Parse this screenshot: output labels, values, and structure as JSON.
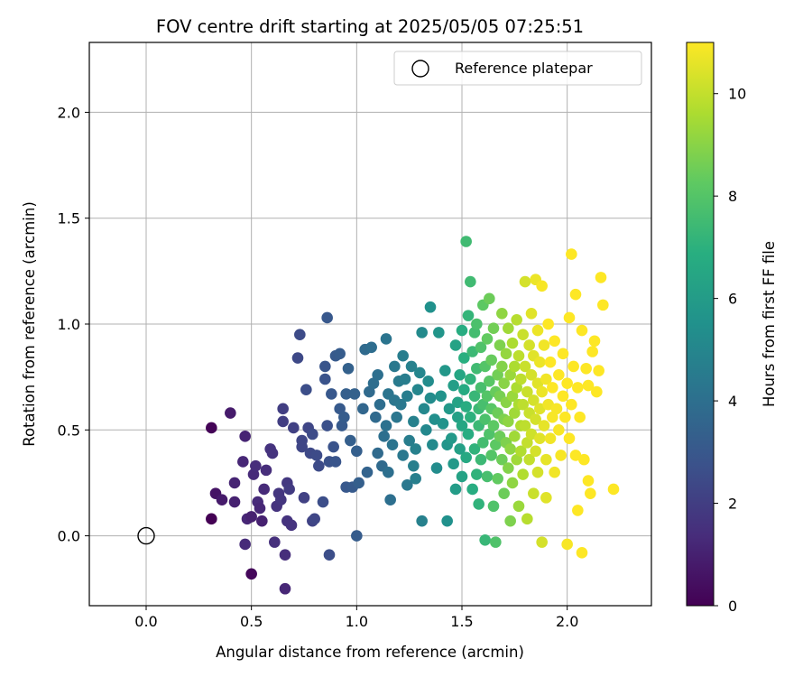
{
  "chart_data": {
    "type": "scatter",
    "title": "FOV centre drift starting at 2025/05/05 07:25:51",
    "xlabel": "Angular distance from reference (arcmin)",
    "ylabel": "Rotation from reference (arcmin)",
    "xlim": [
      -0.27,
      2.4
    ],
    "ylim": [
      -0.33,
      2.33
    ],
    "x_ticks": [
      "0.0",
      "0.5",
      "1.0",
      "1.5",
      "2.0"
    ],
    "y_ticks": [
      "0.0",
      "0.5",
      "1.0",
      "1.5",
      "2.0"
    ],
    "grid": true,
    "legend": {
      "placement": "top-right",
      "entries": [
        "Reference platepar"
      ]
    },
    "reference_point": {
      "x": 0.0,
      "y": 0.0
    },
    "colorbar": {
      "label": "Hours from first FF file",
      "colormap": "viridis",
      "range": [
        0,
        11
      ],
      "ticks": [
        "0",
        "2",
        "4",
        "6",
        "8",
        "10"
      ]
    },
    "points": [
      [
        0.31,
        0.51,
        0.1
      ],
      [
        0.31,
        0.08,
        0.0
      ],
      [
        0.33,
        0.2,
        0.6
      ],
      [
        0.36,
        0.17,
        0.8
      ],
      [
        0.4,
        0.58,
        0.8
      ],
      [
        0.42,
        0.16,
        1.0
      ],
      [
        0.42,
        0.25,
        1.1
      ],
      [
        0.46,
        0.35,
        1.2
      ],
      [
        0.47,
        0.47,
        1.1
      ],
      [
        0.47,
        -0.04,
        1.3
      ],
      [
        0.48,
        0.08,
        1.2
      ],
      [
        0.5,
        0.09,
        1.0
      ],
      [
        0.5,
        -0.18,
        0.2
      ],
      [
        0.51,
        0.29,
        1.3
      ],
      [
        0.52,
        0.33,
        1.4
      ],
      [
        0.53,
        0.16,
        1.3
      ],
      [
        0.54,
        0.13,
        1.2
      ],
      [
        0.55,
        0.07,
        1.0
      ],
      [
        0.56,
        0.22,
        1.3
      ],
      [
        0.57,
        0.31,
        1.4
      ],
      [
        0.59,
        0.41,
        1.6
      ],
      [
        0.6,
        0.39,
        1.6
      ],
      [
        0.61,
        -0.03,
        1.5
      ],
      [
        0.62,
        0.14,
        1.6
      ],
      [
        0.63,
        0.2,
        1.7
      ],
      [
        0.64,
        0.17,
        1.7
      ],
      [
        0.65,
        0.6,
        2.0
      ],
      [
        0.65,
        0.54,
        2.0
      ],
      [
        0.66,
        -0.09,
        1.4
      ],
      [
        0.66,
        -0.25,
        1.2
      ],
      [
        0.67,
        0.07,
        1.6
      ],
      [
        0.67,
        0.25,
        1.8
      ],
      [
        0.68,
        0.22,
        1.9
      ],
      [
        0.69,
        0.05,
        1.6
      ],
      [
        0.7,
        0.51,
        2.1
      ],
      [
        0.72,
        0.84,
        2.4
      ],
      [
        0.73,
        0.95,
        2.5
      ],
      [
        0.74,
        0.45,
        2.3
      ],
      [
        0.74,
        0.42,
        2.3
      ],
      [
        0.75,
        0.18,
        2.1
      ],
      [
        0.76,
        0.69,
        2.6
      ],
      [
        0.77,
        0.51,
        2.3
      ],
      [
        0.78,
        0.39,
        2.4
      ],
      [
        0.79,
        0.48,
        2.5
      ],
      [
        0.79,
        0.07,
        2.2
      ],
      [
        0.8,
        0.08,
        2.3
      ],
      [
        0.81,
        0.38,
        2.5
      ],
      [
        0.82,
        0.33,
        2.5
      ],
      [
        0.84,
        0.16,
        2.6
      ],
      [
        0.85,
        0.8,
        2.9
      ],
      [
        0.85,
        0.74,
        2.8
      ],
      [
        0.86,
        0.52,
        2.7
      ],
      [
        0.86,
        1.03,
        3.0
      ],
      [
        0.87,
        0.35,
        2.7
      ],
      [
        0.87,
        -0.09,
        2.6
      ],
      [
        0.88,
        0.67,
        3.0
      ],
      [
        0.89,
        0.42,
        2.8
      ],
      [
        0.9,
        0.85,
        3.1
      ],
      [
        0.9,
        0.35,
        2.9
      ],
      [
        0.92,
        0.86,
        3.2
      ],
      [
        0.92,
        0.6,
        3.1
      ],
      [
        0.93,
        0.52,
        3.1
      ],
      [
        0.94,
        0.56,
        3.2
      ],
      [
        0.95,
        0.23,
        3.0
      ],
      [
        0.95,
        0.67,
        3.3
      ],
      [
        0.96,
        0.79,
        3.4
      ],
      [
        0.97,
        0.45,
        3.3
      ],
      [
        0.98,
        0.23,
        3.1
      ],
      [
        0.99,
        0.67,
        3.4
      ],
      [
        1.0,
        0.4,
        3.3
      ],
      [
        1.0,
        0.0,
        3.2
      ],
      [
        1.01,
        0.25,
        3.3
      ],
      [
        1.03,
        0.6,
        3.6
      ],
      [
        1.04,
        0.88,
        3.8
      ],
      [
        1.05,
        0.3,
        3.5
      ],
      [
        1.06,
        0.68,
        3.8
      ],
      [
        1.07,
        0.89,
        3.9
      ],
      [
        1.08,
        0.72,
        3.9
      ],
      [
        1.09,
        0.56,
        3.8
      ],
      [
        1.1,
        0.39,
        3.8
      ],
      [
        1.1,
        0.76,
        4.0
      ],
      [
        1.11,
        0.62,
        3.9
      ],
      [
        1.12,
        0.33,
        3.8
      ],
      [
        1.13,
        0.47,
        4.0
      ],
      [
        1.14,
        0.93,
        4.2
      ],
      [
        1.14,
        0.52,
        4.1
      ],
      [
        1.15,
        0.3,
        4.0
      ],
      [
        1.15,
        0.67,
        4.2
      ],
      [
        1.16,
        0.17,
        4.0
      ],
      [
        1.17,
        0.43,
        4.2
      ],
      [
        1.18,
        0.8,
        4.4
      ],
      [
        1.18,
        0.64,
        4.3
      ],
      [
        1.19,
        0.56,
        4.3
      ],
      [
        1.2,
        0.73,
        4.5
      ],
      [
        1.21,
        0.62,
        4.4
      ],
      [
        1.22,
        0.38,
        4.4
      ],
      [
        1.22,
        0.85,
        4.6
      ],
      [
        1.23,
        0.74,
        4.6
      ],
      [
        1.24,
        0.66,
        4.6
      ],
      [
        1.24,
        0.24,
        4.4
      ],
      [
        1.25,
        0.45,
        4.6
      ],
      [
        1.26,
        0.8,
        4.8
      ],
      [
        1.27,
        0.33,
        4.7
      ],
      [
        1.27,
        0.54,
        4.8
      ],
      [
        1.28,
        0.41,
        4.8
      ],
      [
        1.28,
        0.27,
        4.7
      ],
      [
        1.29,
        0.69,
        5.0
      ],
      [
        1.3,
        0.77,
        5.0
      ],
      [
        1.31,
        0.96,
        5.2
      ],
      [
        1.31,
        0.07,
        4.8
      ],
      [
        1.32,
        0.6,
        5.1
      ],
      [
        1.33,
        0.5,
        5.1
      ],
      [
        1.34,
        0.73,
        5.3
      ],
      [
        1.35,
        0.65,
        5.3
      ],
      [
        1.35,
        1.08,
        5.5
      ],
      [
        1.36,
        0.43,
        5.2
      ],
      [
        1.37,
        0.55,
        5.4
      ],
      [
        1.38,
        0.32,
        5.3
      ],
      [
        1.39,
        0.96,
        5.7
      ],
      [
        1.4,
        0.66,
        5.6
      ],
      [
        1.41,
        0.53,
        5.6
      ],
      [
        1.42,
        0.78,
        5.8
      ],
      [
        1.43,
        0.43,
        5.7
      ],
      [
        1.43,
        0.07,
        5.5
      ],
      [
        1.44,
        0.6,
        5.9
      ],
      [
        1.45,
        0.46,
        5.9
      ],
      [
        1.46,
        0.34,
        5.9
      ],
      [
        1.46,
        0.71,
        6.1
      ],
      [
        1.47,
        0.22,
        6.0
      ],
      [
        1.47,
        0.9,
        6.3
      ],
      [
        1.48,
        0.56,
        6.2
      ],
      [
        1.48,
        0.63,
        6.3
      ],
      [
        1.49,
        0.41,
        6.2
      ],
      [
        1.49,
        0.76,
        6.5
      ],
      [
        1.5,
        0.28,
        6.3
      ],
      [
        1.5,
        0.52,
        6.5
      ],
      [
        1.5,
        0.97,
        6.8
      ],
      [
        1.51,
        0.69,
        6.7
      ],
      [
        1.51,
        0.84,
        6.9
      ],
      [
        1.52,
        1.39,
        7.5
      ],
      [
        1.52,
        0.61,
        6.8
      ],
      [
        1.52,
        0.37,
        6.6
      ],
      [
        1.53,
        1.04,
        7.2
      ],
      [
        1.53,
        0.48,
        6.8
      ],
      [
        1.54,
        0.74,
        7.1
      ],
      [
        1.54,
        1.2,
        7.5
      ],
      [
        1.54,
        0.56,
        7.0
      ],
      [
        1.55,
        0.22,
        6.8
      ],
      [
        1.55,
        0.87,
        7.4
      ],
      [
        1.56,
        0.66,
        7.3
      ],
      [
        1.56,
        0.41,
        7.1
      ],
      [
        1.56,
        0.96,
        7.6
      ],
      [
        1.57,
        0.29,
        7.1
      ],
      [
        1.57,
        0.79,
        7.5
      ],
      [
        1.57,
        1.0,
        7.8
      ],
      [
        1.58,
        0.6,
        7.4
      ],
      [
        1.58,
        0.15,
        7.1
      ],
      [
        1.58,
        0.52,
        7.4
      ],
      [
        1.59,
        0.7,
        7.7
      ],
      [
        1.59,
        0.36,
        7.4
      ],
      [
        1.59,
        0.89,
        7.9
      ],
      [
        1.6,
        0.62,
        7.7
      ],
      [
        1.6,
        0.44,
        7.6
      ],
      [
        1.6,
        1.09,
        8.2
      ],
      [
        1.61,
        -0.02,
        7.3
      ],
      [
        1.61,
        0.8,
        8.0
      ],
      [
        1.61,
        0.55,
        7.8
      ],
      [
        1.62,
        0.66,
        8.0
      ],
      [
        1.62,
        0.28,
        7.7
      ],
      [
        1.62,
        0.93,
        8.3
      ],
      [
        1.63,
        0.48,
        7.9
      ],
      [
        1.63,
        0.73,
        8.1
      ],
      [
        1.63,
        1.12,
        8.5
      ],
      [
        1.64,
        0.6,
        8.1
      ],
      [
        1.64,
        0.38,
        8.0
      ],
      [
        1.64,
        0.83,
        8.4
      ],
      [
        1.65,
        0.52,
        8.2
      ],
      [
        1.65,
        0.14,
        7.9
      ],
      [
        1.65,
        0.98,
        8.6
      ],
      [
        1.66,
        0.68,
        8.4
      ],
      [
        1.66,
        0.43,
        8.2
      ],
      [
        1.66,
        -0.03,
        7.9
      ],
      [
        1.67,
        0.76,
        8.6
      ],
      [
        1.67,
        0.27,
        8.3
      ],
      [
        1.67,
        0.58,
        8.5
      ],
      [
        1.68,
        0.9,
        8.8
      ],
      [
        1.68,
        0.47,
        8.5
      ],
      [
        1.68,
        0.66,
        8.7
      ],
      [
        1.69,
        0.36,
        8.5
      ],
      [
        1.69,
        0.8,
        8.9
      ],
      [
        1.69,
        1.05,
        9.1
      ],
      [
        1.7,
        0.55,
        8.8
      ],
      [
        1.7,
        0.2,
        8.5
      ],
      [
        1.7,
        0.72,
        9.0
      ],
      [
        1.71,
        0.44,
        8.8
      ],
      [
        1.71,
        0.86,
        9.2
      ],
      [
        1.71,
        0.63,
        9.0
      ],
      [
        1.72,
        0.32,
        8.9
      ],
      [
        1.72,
        0.98,
        9.4
      ],
      [
        1.72,
        0.54,
        9.1
      ],
      [
        1.73,
        0.76,
        9.3
      ],
      [
        1.73,
        0.07,
        8.8
      ],
      [
        1.73,
        0.41,
        9.1
      ],
      [
        1.74,
        0.66,
        9.3
      ],
      [
        1.74,
        0.91,
        9.6
      ],
      [
        1.74,
        0.25,
        9.1
      ],
      [
        1.75,
        0.58,
        9.4
      ],
      [
        1.75,
        0.8,
        9.6
      ],
      [
        1.75,
        0.47,
        9.4
      ],
      [
        1.76,
        1.02,
        9.8
      ],
      [
        1.76,
        0.7,
        9.6
      ],
      [
        1.76,
        0.36,
        9.4
      ],
      [
        1.77,
        0.62,
        9.6
      ],
      [
        1.77,
        0.14,
        9.3
      ],
      [
        1.77,
        0.85,
        9.9
      ],
      [
        1.78,
        0.52,
        9.7
      ],
      [
        1.78,
        0.74,
        9.9
      ],
      [
        1.78,
        0.4,
        9.7
      ],
      [
        1.79,
        0.95,
        10.1
      ],
      [
        1.79,
        0.62,
        9.9
      ],
      [
        1.79,
        0.29,
        9.7
      ],
      [
        1.8,
        0.8,
        10.1
      ],
      [
        1.8,
        0.52,
        9.9
      ],
      [
        1.8,
        1.2,
        10.3
      ],
      [
        1.81,
        0.68,
        10.1
      ],
      [
        1.81,
        0.44,
        10.0
      ],
      [
        1.81,
        0.08,
        9.8
      ],
      [
        1.82,
        0.9,
        10.3
      ],
      [
        1.82,
        0.58,
        10.1
      ],
      [
        1.82,
        0.36,
        10.0
      ],
      [
        1.83,
        0.76,
        10.3
      ],
      [
        1.83,
        1.05,
        10.5
      ],
      [
        1.83,
        0.48,
        10.2
      ],
      [
        1.84,
        0.64,
        10.3
      ],
      [
        1.84,
        0.2,
        10.1
      ],
      [
        1.84,
        0.85,
        10.5
      ],
      [
        1.85,
        0.55,
        10.3
      ],
      [
        1.85,
        1.21,
        10.7
      ],
      [
        1.85,
        0.4,
        10.3
      ],
      [
        1.86,
        0.72,
        10.5
      ],
      [
        1.86,
        0.97,
        10.7
      ],
      [
        1.86,
        0.3,
        10.3
      ],
      [
        1.87,
        0.6,
        10.5
      ],
      [
        1.87,
        0.82,
        10.7
      ],
      [
        1.87,
        0.46,
        10.5
      ],
      [
        1.88,
        1.18,
        10.9
      ],
      [
        1.88,
        0.68,
        10.7
      ],
      [
        1.88,
        -0.03,
        10.3
      ],
      [
        1.89,
        0.52,
        10.6
      ],
      [
        1.89,
        0.9,
        10.8
      ],
      [
        1.9,
        0.36,
        10.6
      ],
      [
        1.9,
        0.74,
        10.8
      ],
      [
        1.9,
        0.18,
        10.5
      ],
      [
        1.91,
        0.62,
        10.8
      ],
      [
        1.91,
        1.0,
        11.0
      ],
      [
        1.92,
        0.46,
        10.8
      ],
      [
        1.92,
        0.82,
        11.0
      ],
      [
        1.93,
        0.56,
        10.9
      ],
      [
        1.93,
        0.7,
        11.0
      ],
      [
        1.94,
        0.3,
        10.8
      ],
      [
        1.94,
        0.92,
        11.0
      ],
      [
        1.95,
        0.6,
        10.9
      ],
      [
        1.96,
        0.5,
        10.9
      ],
      [
        1.96,
        0.76,
        11.0
      ],
      [
        1.97,
        0.38,
        10.9
      ],
      [
        1.98,
        0.66,
        11.0
      ],
      [
        1.98,
        0.86,
        11.0
      ],
      [
        1.99,
        0.56,
        11.0
      ],
      [
        2.0,
        0.72,
        11.0
      ],
      [
        2.0,
        -0.04,
        10.9
      ],
      [
        2.01,
        1.03,
        11.0
      ],
      [
        2.01,
        0.46,
        11.0
      ],
      [
        2.02,
        1.33,
        11.0
      ],
      [
        2.02,
        0.62,
        11.0
      ],
      [
        2.03,
        0.8,
        11.0
      ],
      [
        2.04,
        0.38,
        11.0
      ],
      [
        2.04,
        1.14,
        11.0
      ],
      [
        2.05,
        0.12,
        11.0
      ],
      [
        2.05,
        0.7,
        11.0
      ],
      [
        2.06,
        0.56,
        11.0
      ],
      [
        2.07,
        0.97,
        11.0
      ],
      [
        2.07,
        -0.08,
        11.0
      ],
      [
        2.08,
        0.36,
        11.0
      ],
      [
        2.09,
        0.79,
        11.0
      ],
      [
        2.1,
        0.26,
        11.0
      ],
      [
        2.1,
        0.71,
        11.0
      ],
      [
        2.11,
        0.2,
        11.0
      ],
      [
        2.12,
        0.87,
        11.0
      ],
      [
        2.13,
        0.92,
        11.0
      ],
      [
        2.14,
        0.68,
        11.0
      ],
      [
        2.15,
        0.78,
        11.0
      ],
      [
        2.16,
        1.22,
        11.0
      ],
      [
        2.17,
        1.09,
        11.0
      ],
      [
        2.22,
        0.22,
        11.0
      ]
    ]
  }
}
